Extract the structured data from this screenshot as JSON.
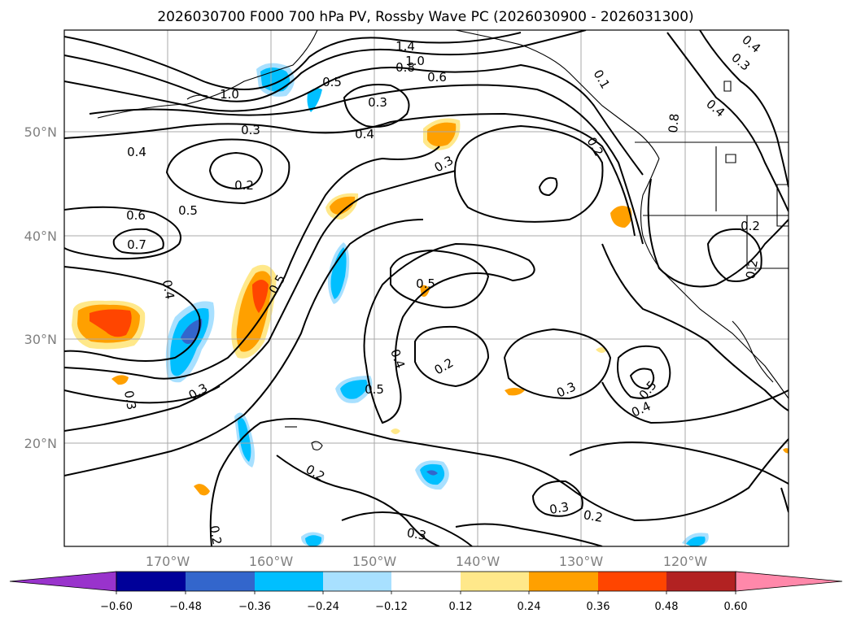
{
  "figure": {
    "title": "2026030700 F000 700 hPa PV, Rossby Wave PC (2026030900 - 2026031300)"
  },
  "map": {
    "lon_labels": [
      "170°W",
      "160°W",
      "150°W",
      "140°W",
      "130°W",
      "120°W"
    ],
    "lat_labels": [
      "50°N",
      "40°N",
      "30°N",
      "20°N"
    ]
  },
  "colorbar": {
    "tick_labels": [
      "−0.60",
      "−0.48",
      "−0.36",
      "−0.24",
      "−0.12",
      "0.12",
      "0.24",
      "0.36",
      "0.48",
      "0.60"
    ],
    "colors": {
      "under": "#9933cc",
      "b1": "#000099",
      "b2": "#3366cc",
      "b3": "#00bfff",
      "b4": "#a8e0ff",
      "b5": "#ffffff",
      "b6": "#ffe88a",
      "b7": "#ffa000",
      "b8": "#ff4500",
      "b9": "#b22222",
      "over": "#ff88aa"
    }
  },
  "contour_labels": [
    "1.4",
    "1.0",
    "0.8",
    "0.6",
    "1.0",
    "0.5",
    "0.3",
    "0.4",
    "0.3",
    "0.4",
    "0.2",
    "0.5",
    "0.6",
    "0.7",
    "0.4",
    "0.5",
    "0.5",
    "0.3",
    "0.3",
    "0.4",
    "0.2",
    "0.5",
    "0.3",
    "0.2",
    "0.3",
    "0.2",
    "0.3",
    "0.2",
    "0.5",
    "0.4",
    "0.3",
    "0.4",
    "0.4",
    "0.1",
    "0.2",
    "0.8",
    "0.3",
    "0.2",
    "0.2"
  ]
}
